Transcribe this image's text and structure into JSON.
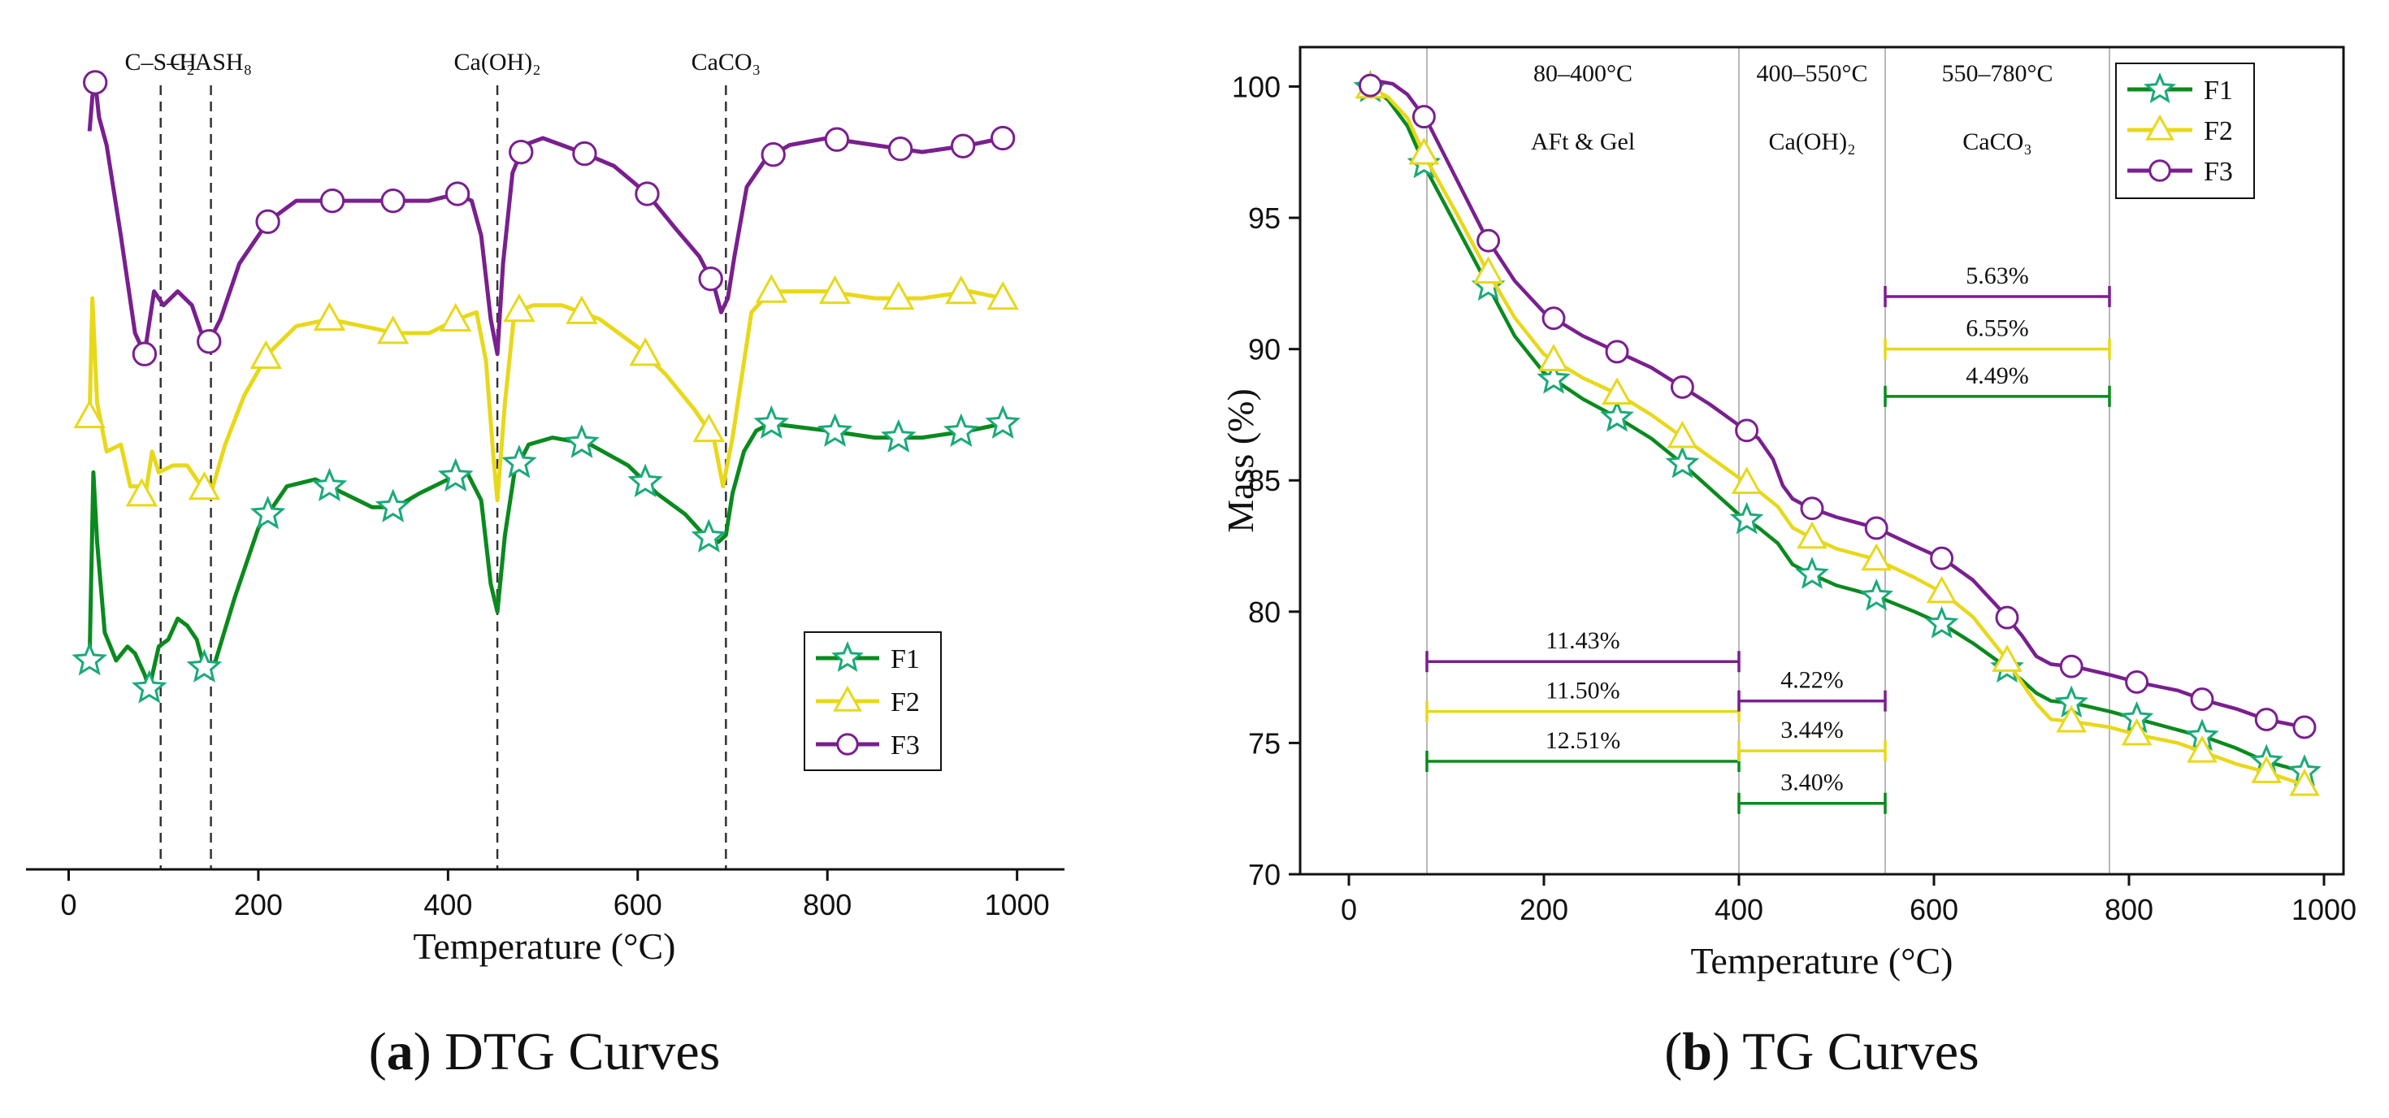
{
  "colors": {
    "F1": "#0a8a1e",
    "F2": "#e8d81a",
    "F3": "#7a1f8f",
    "marker_star_stroke": "#1aaa78",
    "guide": "#b8b8b8",
    "dash": "#333333"
  },
  "icons": {
    "F1": "star-marker-icon",
    "F2": "triangle-marker-icon",
    "F3": "circle-marker-icon"
  },
  "chart_data": [
    {
      "id": "dtg",
      "type": "line",
      "caption_letter": "a",
      "caption_rest": "DTG Curves",
      "title": "",
      "xlabel": "Temperature (°C)",
      "ylabel": "",
      "xlim": [
        -45,
        1050
      ],
      "ylim": [
        -1.5,
        10.4
      ],
      "xticks": [
        0,
        200,
        400,
        600,
        800,
        1000
      ],
      "grid": false,
      "legend_position": "lower-right",
      "legend_entries": [
        "F1",
        "F2",
        "F3"
      ],
      "annotations": [
        {
          "x": 97,
          "text": "C–S–H"
        },
        {
          "x": 150,
          "text": "C2ASH8",
          "display": "C₂ASH₈"
        },
        {
          "x": 452,
          "text": "Ca(OH)2",
          "display": "Ca(OH)₂"
        },
        {
          "x": 693,
          "text": "CaCO3",
          "display": "CaCO₃"
        }
      ],
      "series": [
        {
          "name": "F1",
          "x": [
            22,
            26,
            30,
            38,
            50,
            62,
            70,
            80,
            85,
            95,
            105,
            115,
            125,
            135,
            145,
            155,
            175,
            200,
            230,
            260,
            290,
            320,
            345,
            370,
            400,
            420,
            435,
            445,
            452,
            460,
            470,
            485,
            510,
            550,
            590,
            620,
            650,
            670,
            685,
            693,
            700,
            712,
            725,
            740,
            800,
            850,
            900,
            950,
            985
          ],
          "y": [
            1.5,
            4.2,
            3.2,
            1.9,
            1.5,
            1.7,
            1.6,
            1.3,
            1.1,
            1.7,
            1.8,
            2.1,
            2.0,
            1.8,
            1.3,
            1.5,
            2.4,
            3.4,
            4.0,
            4.1,
            3.9,
            3.7,
            3.7,
            3.9,
            4.1,
            4.2,
            3.8,
            2.6,
            2.2,
            3.3,
            4.2,
            4.6,
            4.7,
            4.6,
            4.3,
            3.9,
            3.6,
            3.3,
            3.2,
            3.3,
            3.9,
            4.5,
            4.8,
            4.9,
            4.8,
            4.7,
            4.7,
            4.8,
            4.9
          ],
          "marker_x": [
            22,
            85,
            143,
            210,
            275,
            342,
            408,
            475,
            541,
            608,
            675,
            741,
            808,
            875,
            941,
            985
          ]
        },
        {
          "name": "F2",
          "x": [
            22,
            25,
            30,
            40,
            55,
            65,
            72,
            80,
            88,
            95,
            110,
            125,
            140,
            150,
            165,
            185,
            210,
            240,
            275,
            310,
            345,
            380,
            410,
            430,
            440,
            448,
            452,
            460,
            470,
            490,
            520,
            560,
            600,
            630,
            660,
            680,
            690,
            700,
            720,
            740,
            800,
            850,
            900,
            950,
            985
          ],
          "y": [
            5.0,
            6.7,
            5.2,
            4.5,
            4.6,
            4.0,
            4.0,
            3.8,
            4.5,
            4.2,
            4.3,
            4.3,
            4.0,
            3.9,
            4.6,
            5.3,
            5.9,
            6.3,
            6.4,
            6.3,
            6.2,
            6.2,
            6.4,
            6.5,
            5.8,
            4.4,
            3.8,
            5.2,
            6.5,
            6.6,
            6.6,
            6.4,
            6.0,
            5.6,
            5.1,
            4.7,
            4.0,
            4.7,
            6.5,
            6.8,
            6.8,
            6.7,
            6.7,
            6.8,
            6.7
          ],
          "marker_x": [
            22,
            77,
            143,
            208,
            275,
            342,
            408,
            475,
            541,
            608,
            675,
            741,
            808,
            875,
            941,
            985
          ]
        },
        {
          "name": "F3",
          "x": [
            22,
            25,
            28,
            32,
            40,
            55,
            70,
            80,
            90,
            100,
            115,
            130,
            145,
            160,
            180,
            210,
            240,
            275,
            310,
            345,
            380,
            410,
            425,
            435,
            445,
            452,
            458,
            468,
            480,
            500,
            540,
            575,
            610,
            640,
            665,
            680,
            688,
            695,
            702,
            715,
            735,
            760,
            800,
            850,
            900,
            950,
            985
          ],
          "y": [
            9.1,
            9.6,
            9.8,
            9.3,
            8.9,
            7.6,
            6.2,
            5.9,
            6.8,
            6.6,
            6.8,
            6.6,
            6.0,
            6.4,
            7.2,
            7.8,
            8.1,
            8.1,
            8.1,
            8.1,
            8.1,
            8.2,
            8.1,
            7.6,
            6.4,
            5.9,
            7.2,
            8.5,
            8.9,
            9.0,
            8.8,
            8.6,
            8.2,
            7.7,
            7.3,
            6.9,
            6.5,
            6.7,
            7.3,
            8.3,
            8.7,
            8.9,
            9.0,
            8.9,
            8.8,
            8.9,
            9.0
          ],
          "marker_x": [
            28,
            80,
            148,
            210,
            278,
            342,
            410,
            477,
            544,
            610,
            677,
            743,
            810,
            877,
            943,
            985
          ]
        }
      ]
    },
    {
      "id": "tg",
      "type": "line",
      "caption_letter": "b",
      "caption_rest": "TG Curves",
      "title": "",
      "xlabel": "Temperature (°C)",
      "ylabel": "Mass (%)",
      "xlim": [
        -50,
        1020
      ],
      "ylim": [
        70,
        101.5
      ],
      "xticks": [
        0,
        200,
        400,
        600,
        800,
        1000
      ],
      "yticks": [
        70,
        75,
        80,
        85,
        90,
        95,
        100
      ],
      "grid": false,
      "legend_position": "top-right",
      "legend_entries": [
        "F1",
        "F2",
        "F3"
      ],
      "guide_lines_x": [
        80,
        400,
        550,
        780
      ],
      "region_labels": [
        {
          "x1": 80,
          "x2": 400,
          "range": "80–400°C",
          "phase": "AFt & Gel"
        },
        {
          "x1": 400,
          "x2": 550,
          "range": "400–550°C",
          "phase": "Ca(OH)2",
          "phase_display": "Ca(OH)₂"
        },
        {
          "x1": 550,
          "x2": 780,
          "range": "550–780°C",
          "phase": "CaCO3",
          "phase_display": "CaCO₃"
        }
      ],
      "mass_loss_intervals": [
        {
          "series": "F3",
          "x1": 80,
          "x2": 400,
          "y": 78.1,
          "label": "11.43%"
        },
        {
          "series": "F2",
          "x1": 80,
          "x2": 400,
          "y": 76.2,
          "label": "11.50%"
        },
        {
          "series": "F1",
          "x1": 80,
          "x2": 400,
          "y": 74.3,
          "label": "12.51%"
        },
        {
          "series": "F3",
          "x1": 400,
          "x2": 550,
          "y": 76.6,
          "label": "4.22%"
        },
        {
          "series": "F2",
          "x1": 400,
          "x2": 550,
          "y": 74.7,
          "label": "3.44%"
        },
        {
          "series": "F1",
          "x1": 400,
          "x2": 550,
          "y": 72.7,
          "label": "3.40%"
        },
        {
          "series": "F3",
          "x1": 550,
          "x2": 780,
          "y": 92.0,
          "label": "5.63%"
        },
        {
          "series": "F2",
          "x1": 550,
          "x2": 780,
          "y": 90.0,
          "label": "6.55%"
        },
        {
          "series": "F1",
          "x1": 550,
          "x2": 780,
          "y": 88.2,
          "label": "4.49%"
        }
      ],
      "series": [
        {
          "name": "F1",
          "x": [
            20,
            40,
            60,
            80,
            110,
            140,
            170,
            200,
            240,
            275,
            310,
            340,
            370,
            400,
            420,
            440,
            455,
            470,
            500,
            540,
            580,
            610,
            640,
            670,
            690,
            705,
            720,
            745,
            780,
            810,
            850,
            880,
            910,
            940,
            980
          ],
          "y": [
            100.0,
            99.5,
            98.5,
            96.8,
            94.7,
            92.6,
            90.5,
            89.1,
            88.1,
            87.4,
            86.6,
            85.7,
            84.7,
            83.7,
            83.2,
            82.6,
            81.8,
            81.5,
            81.0,
            80.6,
            80.0,
            79.5,
            78.8,
            78.0,
            77.4,
            76.9,
            76.6,
            76.5,
            76.2,
            75.9,
            75.5,
            75.2,
            74.8,
            74.3,
            73.9
          ],
          "marker_x": [
            22,
            77,
            143,
            210,
            275,
            342,
            408,
            475,
            541,
            608,
            675,
            741,
            808,
            875,
            941,
            980
          ]
        },
        {
          "name": "F2",
          "x": [
            20,
            40,
            60,
            80,
            110,
            140,
            170,
            200,
            240,
            275,
            310,
            340,
            370,
            400,
            420,
            440,
            455,
            470,
            500,
            540,
            580,
            610,
            640,
            670,
            690,
            705,
            720,
            745,
            780,
            810,
            850,
            880,
            910,
            940,
            980
          ],
          "y": [
            100.0,
            99.6,
            98.8,
            97.2,
            95.2,
            93.1,
            91.2,
            89.8,
            88.9,
            88.3,
            87.5,
            86.7,
            85.9,
            85.1,
            84.6,
            84.0,
            83.2,
            82.9,
            82.4,
            82.0,
            81.3,
            80.7,
            79.8,
            78.4,
            77.3,
            76.5,
            75.9,
            75.8,
            75.6,
            75.3,
            75.0,
            74.6,
            74.2,
            73.9,
            73.4
          ],
          "marker_x": [
            22,
            77,
            143,
            210,
            275,
            342,
            408,
            475,
            541,
            608,
            675,
            741,
            808,
            875,
            941,
            980
          ]
        },
        {
          "name": "F3",
          "x": [
            20,
            30,
            45,
            60,
            80,
            110,
            140,
            170,
            200,
            240,
            275,
            310,
            340,
            370,
            400,
            420,
            435,
            445,
            455,
            470,
            500,
            540,
            580,
            610,
            640,
            670,
            690,
            705,
            720,
            745,
            780,
            810,
            850,
            880,
            910,
            940,
            980
          ],
          "y": [
            100.0,
            100.2,
            100.1,
            99.7,
            98.7,
            96.5,
            94.3,
            92.6,
            91.4,
            90.5,
            89.9,
            89.3,
            88.6,
            87.9,
            87.1,
            86.6,
            85.8,
            84.8,
            84.3,
            84.0,
            83.6,
            83.2,
            82.5,
            82.0,
            81.2,
            80.0,
            79.1,
            78.3,
            78.0,
            77.9,
            77.6,
            77.3,
            77.0,
            76.6,
            76.3,
            75.9,
            75.6
          ],
          "marker_x": [
            22,
            77,
            143,
            210,
            275,
            342,
            408,
            475,
            541,
            608,
            675,
            741,
            808,
            875,
            941,
            980
          ]
        }
      ]
    }
  ]
}
